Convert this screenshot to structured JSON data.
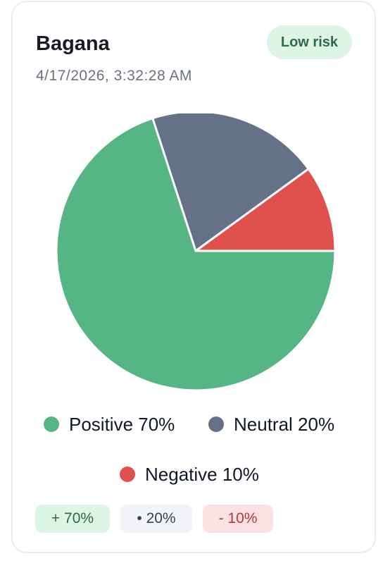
{
  "card": {
    "title": "Bagana",
    "timestamp": "4/17/2026, 3:32:28 AM",
    "badge": "Low risk"
  },
  "chart_data": {
    "type": "pie",
    "title": "",
    "slices": [
      {
        "label": "Positive",
        "value": 70,
        "color": "#55b584"
      },
      {
        "label": "Neutral",
        "value": 20,
        "color": "#657186"
      },
      {
        "label": "Negative",
        "value": 10,
        "color": "#e0504d"
      }
    ],
    "legend": [
      {
        "label": "Positive 70%",
        "color": "#55b584"
      },
      {
        "label": "Neutral 20%",
        "color": "#657186"
      },
      {
        "label": "Negative 10%",
        "color": "#e0504d"
      }
    ],
    "legend_position": "bottom"
  },
  "chips": [
    {
      "label": "+ 70%",
      "bg": "#dcf5e4",
      "fg": "#2f6a49"
    },
    {
      "label": "• 20%",
      "bg": "#f1f3f6",
      "fg": "#374151"
    },
    {
      "label": "- 10%",
      "bg": "#fbe1e1",
      "fg": "#b43a3a"
    }
  ]
}
